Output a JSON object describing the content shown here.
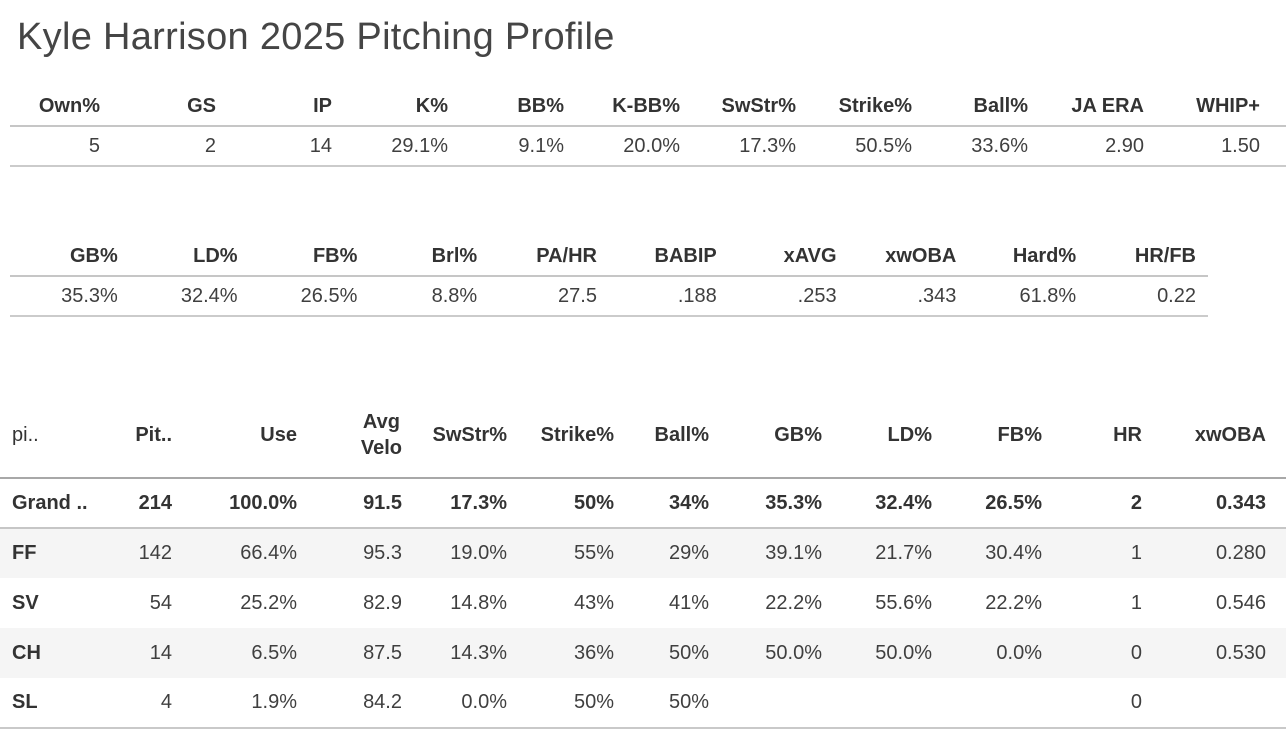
{
  "title": "Kyle Harrison 2025 Pitching Profile",
  "colors": {
    "background": "#ffffff",
    "text": "#343434",
    "header_text": "#333333",
    "row_stripe": "#f5f5f5",
    "grid_line_light": "#c9c9c9",
    "grid_line_dark": "#a8a8a8",
    "sort_icon": "#8b8b8b"
  },
  "season_table": {
    "headers": [
      "Own%",
      "GS",
      "IP",
      "K%",
      "BB%",
      "K-BB%",
      "SwStr%",
      "Strike%",
      "Ball%",
      "JA ERA",
      "WHIP+"
    ],
    "values": [
      "5",
      "2",
      "14",
      "29.1%",
      "9.1%",
      "20.0%",
      "17.3%",
      "50.5%",
      "33.6%",
      "2.90",
      "1.50"
    ]
  },
  "batted_ball_table": {
    "headers": [
      "GB%",
      "LD%",
      "FB%",
      "Brl%",
      "PA/HR",
      "BABIP",
      "xAVG",
      "xwOBA",
      "Hard%",
      "HR/FB"
    ],
    "values": [
      "35.3%",
      "32.4%",
      "26.5%",
      "8.8%",
      "27.5",
      ".188",
      ".253",
      ".343",
      "61.8%",
      "0.22"
    ]
  },
  "pitch_table": {
    "row_field_label": "pi..",
    "sort_icon": "sort-descending-icon",
    "headers": [
      "Pit..",
      "Use",
      "Avg\nVelo",
      "SwStr%",
      "Strike%",
      "Ball%",
      "GB%",
      "LD%",
      "FB%",
      "HR",
      "xwOBA"
    ],
    "rows": [
      {
        "label": "Grand ..",
        "total": true,
        "values": [
          "214",
          "100.0%",
          "91.5",
          "17.3%",
          "50%",
          "34%",
          "35.3%",
          "32.4%",
          "26.5%",
          "2",
          "0.343"
        ]
      },
      {
        "label": "FF",
        "total": false,
        "values": [
          "142",
          "66.4%",
          "95.3",
          "19.0%",
          "55%",
          "29%",
          "39.1%",
          "21.7%",
          "30.4%",
          "1",
          "0.280"
        ]
      },
      {
        "label": "SV",
        "total": false,
        "values": [
          "54",
          "25.2%",
          "82.9",
          "14.8%",
          "43%",
          "41%",
          "22.2%",
          "55.6%",
          "22.2%",
          "1",
          "0.546"
        ]
      },
      {
        "label": "CH",
        "total": false,
        "values": [
          "14",
          "6.5%",
          "87.5",
          "14.3%",
          "36%",
          "50%",
          "50.0%",
          "50.0%",
          "0.0%",
          "0",
          "0.530"
        ]
      },
      {
        "label": "SL",
        "total": false,
        "values": [
          "4",
          "1.9%",
          "84.2",
          "0.0%",
          "50%",
          "50%",
          "",
          "",
          "",
          "0",
          ""
        ]
      }
    ]
  },
  "chart_data": [
    {
      "type": "table",
      "title": "Season summary",
      "columns": [
        "Own%",
        "GS",
        "IP",
        "K%",
        "BB%",
        "K-BB%",
        "SwStr%",
        "Strike%",
        "Ball%",
        "JA ERA",
        "WHIP+"
      ],
      "rows": [
        [
          "5",
          "2",
          "14",
          "29.1%",
          "9.1%",
          "20.0%",
          "17.3%",
          "50.5%",
          "33.6%",
          "2.90",
          "1.50"
        ]
      ]
    },
    {
      "type": "table",
      "title": "Batted ball / expected stats",
      "columns": [
        "GB%",
        "LD%",
        "FB%",
        "Brl%",
        "PA/HR",
        "BABIP",
        "xAVG",
        "xwOBA",
        "Hard%",
        "HR/FB"
      ],
      "rows": [
        [
          "35.3%",
          "32.4%",
          "26.5%",
          "8.8%",
          "27.5",
          ".188",
          ".253",
          ".343",
          "61.8%",
          "0.22"
        ]
      ]
    },
    {
      "type": "table",
      "title": "Pitch mix by pitch type",
      "columns": [
        "pi..",
        "Pit..",
        "Use",
        "Avg Velo",
        "SwStr%",
        "Strike%",
        "Ball%",
        "GB%",
        "LD%",
        "FB%",
        "HR",
        "xwOBA"
      ],
      "rows": [
        [
          "Grand ..",
          "214",
          "100.0%",
          "91.5",
          "17.3%",
          "50%",
          "34%",
          "35.3%",
          "32.4%",
          "26.5%",
          "2",
          "0.343"
        ],
        [
          "FF",
          "142",
          "66.4%",
          "95.3",
          "19.0%",
          "55%",
          "29%",
          "39.1%",
          "21.7%",
          "30.4%",
          "1",
          "0.280"
        ],
        [
          "SV",
          "54",
          "25.2%",
          "82.9",
          "14.8%",
          "43%",
          "41%",
          "22.2%",
          "55.6%",
          "22.2%",
          "1",
          "0.546"
        ],
        [
          "CH",
          "14",
          "6.5%",
          "87.5",
          "14.3%",
          "36%",
          "50%",
          "50.0%",
          "50.0%",
          "0.0%",
          "0",
          "0.530"
        ],
        [
          "SL",
          "4",
          "1.9%",
          "84.2",
          "0.0%",
          "50%",
          "50%",
          "",
          "",
          "",
          "0",
          ""
        ]
      ]
    }
  ]
}
